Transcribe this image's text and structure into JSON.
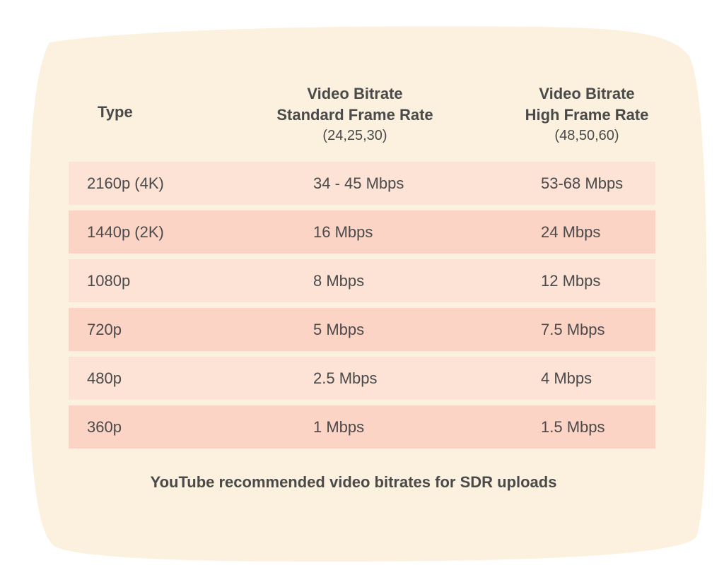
{
  "colors": {
    "page_background": "#ffffff",
    "card_background": "#fbf1de",
    "row_light": "#fde3d6",
    "row_dark": "#fbd4c6",
    "text": "#4a4a4a"
  },
  "header": {
    "type_label": "Type",
    "standard": {
      "line1": "Video Bitrate",
      "line2": "Standard Frame Rate",
      "line3": "(24,25,30)"
    },
    "high": {
      "line1": "Video Bitrate",
      "line2": "High Frame Rate",
      "line3": "(48,50,60)"
    }
  },
  "rows": [
    {
      "type": "2160p (4K)",
      "standard": "34 - 45 Mbps",
      "high": "53-68 Mbps"
    },
    {
      "type": "1440p (2K)",
      "standard": "16 Mbps",
      "high": "24 Mbps"
    },
    {
      "type": "1080p",
      "standard": "8 Mbps",
      "high": "12 Mbps"
    },
    {
      "type": "720p",
      "standard": "5 Mbps",
      "high": "7.5 Mbps"
    },
    {
      "type": "480p",
      "standard": "2.5 Mbps",
      "high": "4 Mbps"
    },
    {
      "type": "360p",
      "standard": "1 Mbps",
      "high": "1.5 Mbps"
    }
  ],
  "caption": "YouTube recommended video bitrates for SDR uploads"
}
